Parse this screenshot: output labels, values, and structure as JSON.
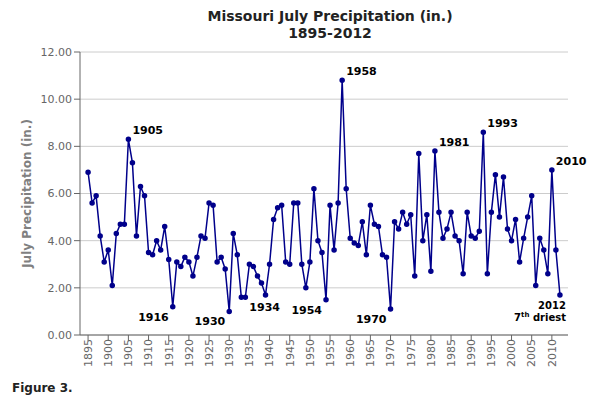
{
  "chart_data": {
    "type": "line",
    "title": "Missouri July Precipitation (in.)",
    "subtitle": "1895-2012",
    "y_label": "July Precipitation (in.)",
    "caption": "Figure 3.",
    "color": "#00008B",
    "marker": "circle",
    "grid": true,
    "x": [
      1895,
      1896,
      1897,
      1898,
      1899,
      1900,
      1901,
      1902,
      1903,
      1904,
      1905,
      1906,
      1907,
      1908,
      1909,
      1910,
      1911,
      1912,
      1913,
      1914,
      1915,
      1916,
      1917,
      1918,
      1919,
      1920,
      1921,
      1922,
      1923,
      1924,
      1925,
      1926,
      1927,
      1928,
      1929,
      1930,
      1931,
      1932,
      1933,
      1934,
      1935,
      1936,
      1937,
      1938,
      1939,
      1940,
      1941,
      1942,
      1943,
      1944,
      1945,
      1946,
      1947,
      1948,
      1949,
      1950,
      1951,
      1952,
      1953,
      1954,
      1955,
      1956,
      1957,
      1958,
      1959,
      1960,
      1961,
      1962,
      1963,
      1964,
      1965,
      1966,
      1967,
      1968,
      1969,
      1970,
      1971,
      1972,
      1973,
      1974,
      1975,
      1976,
      1977,
      1978,
      1979,
      1980,
      1981,
      1982,
      1983,
      1984,
      1985,
      1986,
      1987,
      1988,
      1989,
      1990,
      1991,
      1992,
      1993,
      1994,
      1995,
      1996,
      1997,
      1998,
      1999,
      2000,
      2001,
      2002,
      2003,
      2004,
      2005,
      2006,
      2007,
      2008,
      2009,
      2010,
      2011,
      2012
    ],
    "values": [
      6.9,
      5.6,
      5.9,
      4.2,
      3.1,
      3.6,
      2.1,
      4.3,
      4.7,
      4.7,
      8.3,
      7.3,
      4.2,
      6.3,
      5.9,
      3.5,
      3.4,
      4.0,
      3.6,
      4.6,
      3.2,
      1.2,
      3.1,
      2.9,
      3.3,
      3.1,
      2.5,
      3.3,
      4.2,
      4.1,
      5.6,
      5.5,
      3.1,
      3.3,
      2.8,
      1.0,
      4.3,
      3.4,
      1.6,
      1.6,
      3.0,
      2.9,
      2.5,
      2.2,
      1.7,
      3.0,
      4.9,
      5.4,
      5.5,
      3.1,
      3.0,
      5.6,
      5.6,
      3.0,
      2.0,
      3.1,
      6.2,
      4.0,
      3.5,
      1.5,
      5.5,
      3.6,
      5.6,
      10.8,
      6.2,
      4.1,
      3.9,
      3.8,
      4.8,
      3.4,
      5.5,
      4.7,
      4.6,
      3.4,
      3.3,
      1.1,
      4.8,
      4.5,
      5.2,
      4.7,
      5.1,
      2.5,
      7.7,
      4.0,
      5.1,
      2.7,
      7.8,
      5.2,
      4.1,
      4.5,
      5.2,
      4.2,
      4.0,
      2.6,
      5.2,
      4.2,
      4.1,
      4.4,
      8.6,
      2.6,
      5.2,
      6.8,
      5.0,
      6.7,
      4.5,
      4.0,
      4.9,
      3.1,
      4.1,
      5.0,
      5.9,
      2.1,
      4.1,
      3.6,
      2.6,
      7.0,
      3.6,
      1.7
    ],
    "xlim": [
      1893,
      2014
    ],
    "xticks": [
      1895,
      1900,
      1905,
      1910,
      1915,
      1920,
      1925,
      1930,
      1935,
      1940,
      1945,
      1950,
      1955,
      1960,
      1965,
      1970,
      1975,
      1980,
      1985,
      1990,
      1995,
      2000,
      2005,
      2010
    ],
    "ylim": [
      0.0,
      12.0
    ],
    "yticks": [
      {
        "value": 0,
        "label": "0.00"
      },
      {
        "value": 2,
        "label": "2.00"
      },
      {
        "value": 4,
        "label": "4.00"
      },
      {
        "value": 6,
        "label": "6.00"
      },
      {
        "value": 8,
        "label": "8.00"
      },
      {
        "value": 10,
        "label": "10.00"
      },
      {
        "value": 12,
        "label": "12.00"
      }
    ],
    "annotations": [
      {
        "text": "1905",
        "x": 1905,
        "y": 8.3
      },
      {
        "text": "1916",
        "x": 1916,
        "y": 1.2
      },
      {
        "text": "1930",
        "x": 1930,
        "y": 1.0
      },
      {
        "text": "1934",
        "x": 1934,
        "y": 1.6
      },
      {
        "text": "1954",
        "x": 1954,
        "y": 1.5
      },
      {
        "text": "1958",
        "x": 1958,
        "y": 10.8
      },
      {
        "text": "1970",
        "x": 1970,
        "y": 1.1
      },
      {
        "text": "1981",
        "x": 1981,
        "y": 7.8
      },
      {
        "text": "1993",
        "x": 1993,
        "y": 8.6
      },
      {
        "text": "2010",
        "x": 2010,
        "y": 7.0
      },
      {
        "text": "2012\n7th driest",
        "x": 2012,
        "y": 1.7
      }
    ]
  }
}
